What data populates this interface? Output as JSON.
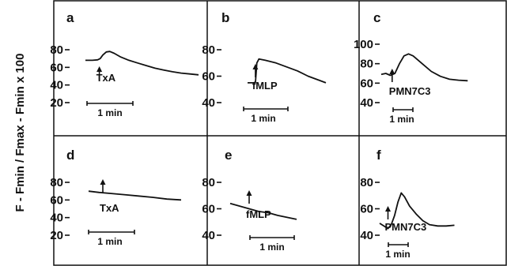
{
  "chart_data": {
    "type": "line",
    "ylabel": "F - Fmin / Fmax - Fmin x 100",
    "panels": [
      {
        "label": "a",
        "stimulus": "TxA",
        "scalebar": "1 min",
        "yticks": [
          20,
          40,
          60,
          80
        ],
        "ylim": [
          20,
          90
        ],
        "trace": [
          [
            0,
            68
          ],
          [
            0.08,
            68
          ],
          [
            0.14,
            68.5
          ],
          [
            0.17,
            70
          ],
          [
            0.2,
            74
          ],
          [
            0.24,
            77.5
          ],
          [
            0.28,
            78
          ],
          [
            0.33,
            76
          ],
          [
            0.4,
            72
          ],
          [
            0.5,
            68
          ],
          [
            0.6,
            65
          ],
          [
            0.7,
            62
          ],
          [
            0.8,
            59
          ],
          [
            0.9,
            57
          ],
          [
            1,
            55
          ],
          [
            1.1,
            53.5
          ],
          [
            1.2,
            52.5
          ],
          [
            1.3,
            51.5
          ]
        ],
        "arrow_t": 0.16
      },
      {
        "label": "b",
        "stimulus": "fMLP",
        "scalebar": "1 min",
        "yticks": [
          40,
          60,
          80
        ],
        "ylim": [
          30,
          90
        ],
        "trace": [
          [
            0,
            55
          ],
          [
            0.06,
            55
          ],
          [
            0.11,
            55
          ],
          [
            0.12,
            62
          ],
          [
            0.13,
            70
          ],
          [
            0.16,
            73
          ],
          [
            0.25,
            72
          ],
          [
            0.4,
            70
          ],
          [
            0.55,
            67
          ],
          [
            0.7,
            64
          ],
          [
            0.85,
            60
          ],
          [
            1,
            57
          ],
          [
            1.1,
            55
          ]
        ],
        "arrow_t": 0.11
      },
      {
        "label": "c",
        "stimulus": "PMN7C3",
        "scalebar": "1 min",
        "yticks": [
          40,
          60,
          80,
          100
        ],
        "ylim": [
          30,
          110
        ],
        "trace": [
          [
            0,
            69
          ],
          [
            0.05,
            70
          ],
          [
            0.1,
            68
          ],
          [
            0.15,
            70
          ],
          [
            0.2,
            80
          ],
          [
            0.25,
            88
          ],
          [
            0.3,
            90
          ],
          [
            0.35,
            88
          ],
          [
            0.45,
            80
          ],
          [
            0.55,
            72
          ],
          [
            0.65,
            67
          ],
          [
            0.75,
            64
          ],
          [
            0.85,
            63
          ],
          [
            0.95,
            62.5
          ]
        ],
        "arrow_t": 0.12
      },
      {
        "label": "d",
        "stimulus": "TxA",
        "scalebar": "1 min",
        "yticks": [
          20,
          40,
          60,
          80
        ],
        "ylim": [
          20,
          90
        ],
        "trace": [
          [
            0,
            70
          ],
          [
            0.15,
            68.5
          ],
          [
            0.3,
            67.5
          ],
          [
            0.5,
            66
          ],
          [
            0.7,
            64.5
          ],
          [
            0.9,
            63
          ],
          [
            1.1,
            61
          ],
          [
            1.3,
            60
          ]
        ],
        "arrow_t": 0.2
      },
      {
        "label": "e",
        "stimulus": "fMLP",
        "scalebar": "1 min",
        "yticks": [
          40,
          60,
          80
        ],
        "ylim": [
          30,
          90
        ],
        "trace": [
          [
            0,
            64
          ],
          [
            0.15,
            62
          ],
          [
            0.3,
            60
          ],
          [
            0.45,
            58
          ],
          [
            0.6,
            57
          ],
          [
            0.75,
            55
          ],
          [
            0.9,
            53.5
          ],
          [
            1.05,
            52
          ]
        ],
        "arrow_t": 0.3
      },
      {
        "label": "f",
        "stimulus": "PMN7C3",
        "scalebar": "1 min",
        "yticks": [
          40,
          60,
          80
        ],
        "ylim": [
          30,
          90
        ],
        "trace": [
          [
            0,
            49
          ],
          [
            0.05,
            47
          ],
          [
            0.1,
            45
          ],
          [
            0.14,
            48
          ],
          [
            0.18,
            55
          ],
          [
            0.22,
            65
          ],
          [
            0.26,
            72
          ],
          [
            0.3,
            69
          ],
          [
            0.36,
            62
          ],
          [
            0.44,
            56
          ],
          [
            0.52,
            51
          ],
          [
            0.6,
            48
          ],
          [
            0.7,
            47
          ],
          [
            0.8,
            47
          ],
          [
            0.9,
            47.5
          ]
        ],
        "arrow_t": 0.1
      }
    ]
  }
}
